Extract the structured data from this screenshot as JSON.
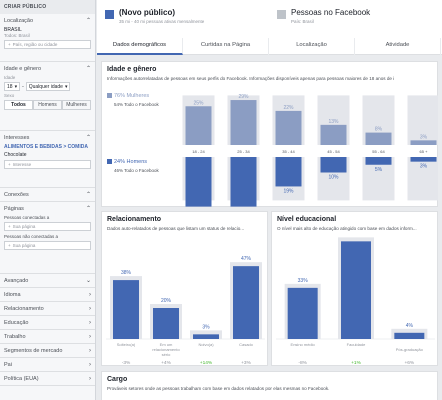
{
  "sidebar": {
    "header": "CRIAR PÚBLICO",
    "location": {
      "title": "Localização",
      "country": "BRASIL",
      "scope": "Todos: Brasil",
      "placeholder": "País, região ou cidade"
    },
    "age_gender": {
      "title": "Idade e gênero",
      "age_label": "Idade",
      "age_from": "18",
      "age_to": "Qualquer idade",
      "sex_label": "Sexo",
      "options": [
        "Todos",
        "Homens",
        "Mulheres"
      ],
      "selected": "Todos"
    },
    "interests": {
      "title": "Interesses",
      "category": "ALIMENTOS E BEBIDAS > COMIDA",
      "value": "Chocolate",
      "placeholder": "Interesse"
    },
    "connections": {
      "title": "Conexões"
    },
    "pages": {
      "title": "Páginas",
      "connected_label": "Pessoas conectadas a",
      "connected_placeholder": "Sua página",
      "not_connected_label": "Pessoas não conectadas a",
      "not_connected_placeholder": "Sua página"
    },
    "collapsed": [
      "Avançado",
      "Idioma",
      "Relacionamento",
      "Educação",
      "Trabalho",
      "Segmentos de mercado",
      "Pai",
      "Política (EUA)"
    ]
  },
  "header": {
    "audience_title": "(Novo público)",
    "audience_sub": "35 mi - 40 mi pessoas ativas mensalmente",
    "facebook_title": "Pessoas no Facebook",
    "facebook_sub": "País: Brasil",
    "tabs": [
      "Dados demográficos",
      "Curtidas na Página",
      "Localização",
      "Atividade"
    ]
  },
  "age_gender": {
    "title": "Idade e gênero",
    "desc": "Informações autorrelatadas de pessoas em seus perfis do Facebook. Informações disponíveis apenas para pessoas maiores de 18 anos de i",
    "women_label": "76% Mulheres",
    "women_sub": "54% Todo o Facebook",
    "men_label": "24% Homens",
    "men_sub": "46% Todo o Facebook"
  },
  "relationship": {
    "title": "Relacionamento",
    "desc": "Dados auto-relatados de pessoas que listam um status de relacio..."
  },
  "education": {
    "title": "Nível educacional",
    "desc": "O nível mais alto de educação atingido com base em dados inform..."
  },
  "cargo": {
    "title": "Cargo",
    "desc": "Prováveis setores onde as pessoas trabalham com base em dados relatados por elas mesmas no Facebook."
  },
  "colors": {
    "accent": "#4267b2",
    "light": "#8b9dc3",
    "gray": "#c9ccd1",
    "green": "#42b72a"
  },
  "chart_data": [
    {
      "type": "bar",
      "title": "Idade e gênero",
      "categories": [
        "18 - 24",
        "25 - 34",
        "35 - 44",
        "45 - 54",
        "55 - 64",
        "65 +"
      ],
      "series": [
        {
          "name": "76% Mulheres",
          "values": [
            25,
            29,
            22,
            13,
            8,
            3
          ],
          "labels": [
            "25%",
            "29%",
            "22%",
            "13%",
            "8%",
            "3%"
          ]
        },
        {
          "name": "24% Homens",
          "values": [
            32,
            32,
            19,
            10,
            5,
            3
          ],
          "labels": [
            "32%",
            "32%",
            "19%",
            "10%",
            "5%",
            "3%"
          ]
        }
      ]
    },
    {
      "type": "bar",
      "title": "Relacionamento",
      "categories": [
        "Solteiro(a)",
        "Em um relacionamento sério",
        "Noivo(a)",
        "Casado"
      ],
      "values": [
        38,
        20,
        3,
        47
      ],
      "labels": [
        "38%",
        "20%",
        "3%",
        "47%"
      ],
      "diffs": [
        "-3%",
        "+4%",
        "+14%",
        "+3%"
      ]
    },
    {
      "type": "bar",
      "title": "Nível educacional",
      "categories": [
        "Ensino médio",
        "Faculdade",
        "Pós-graduação"
      ],
      "values": [
        33,
        63,
        4
      ],
      "labels": [
        "33%",
        "63%",
        "4%"
      ],
      "diffs": [
        "-8%",
        "+1%",
        "+6%"
      ]
    }
  ]
}
